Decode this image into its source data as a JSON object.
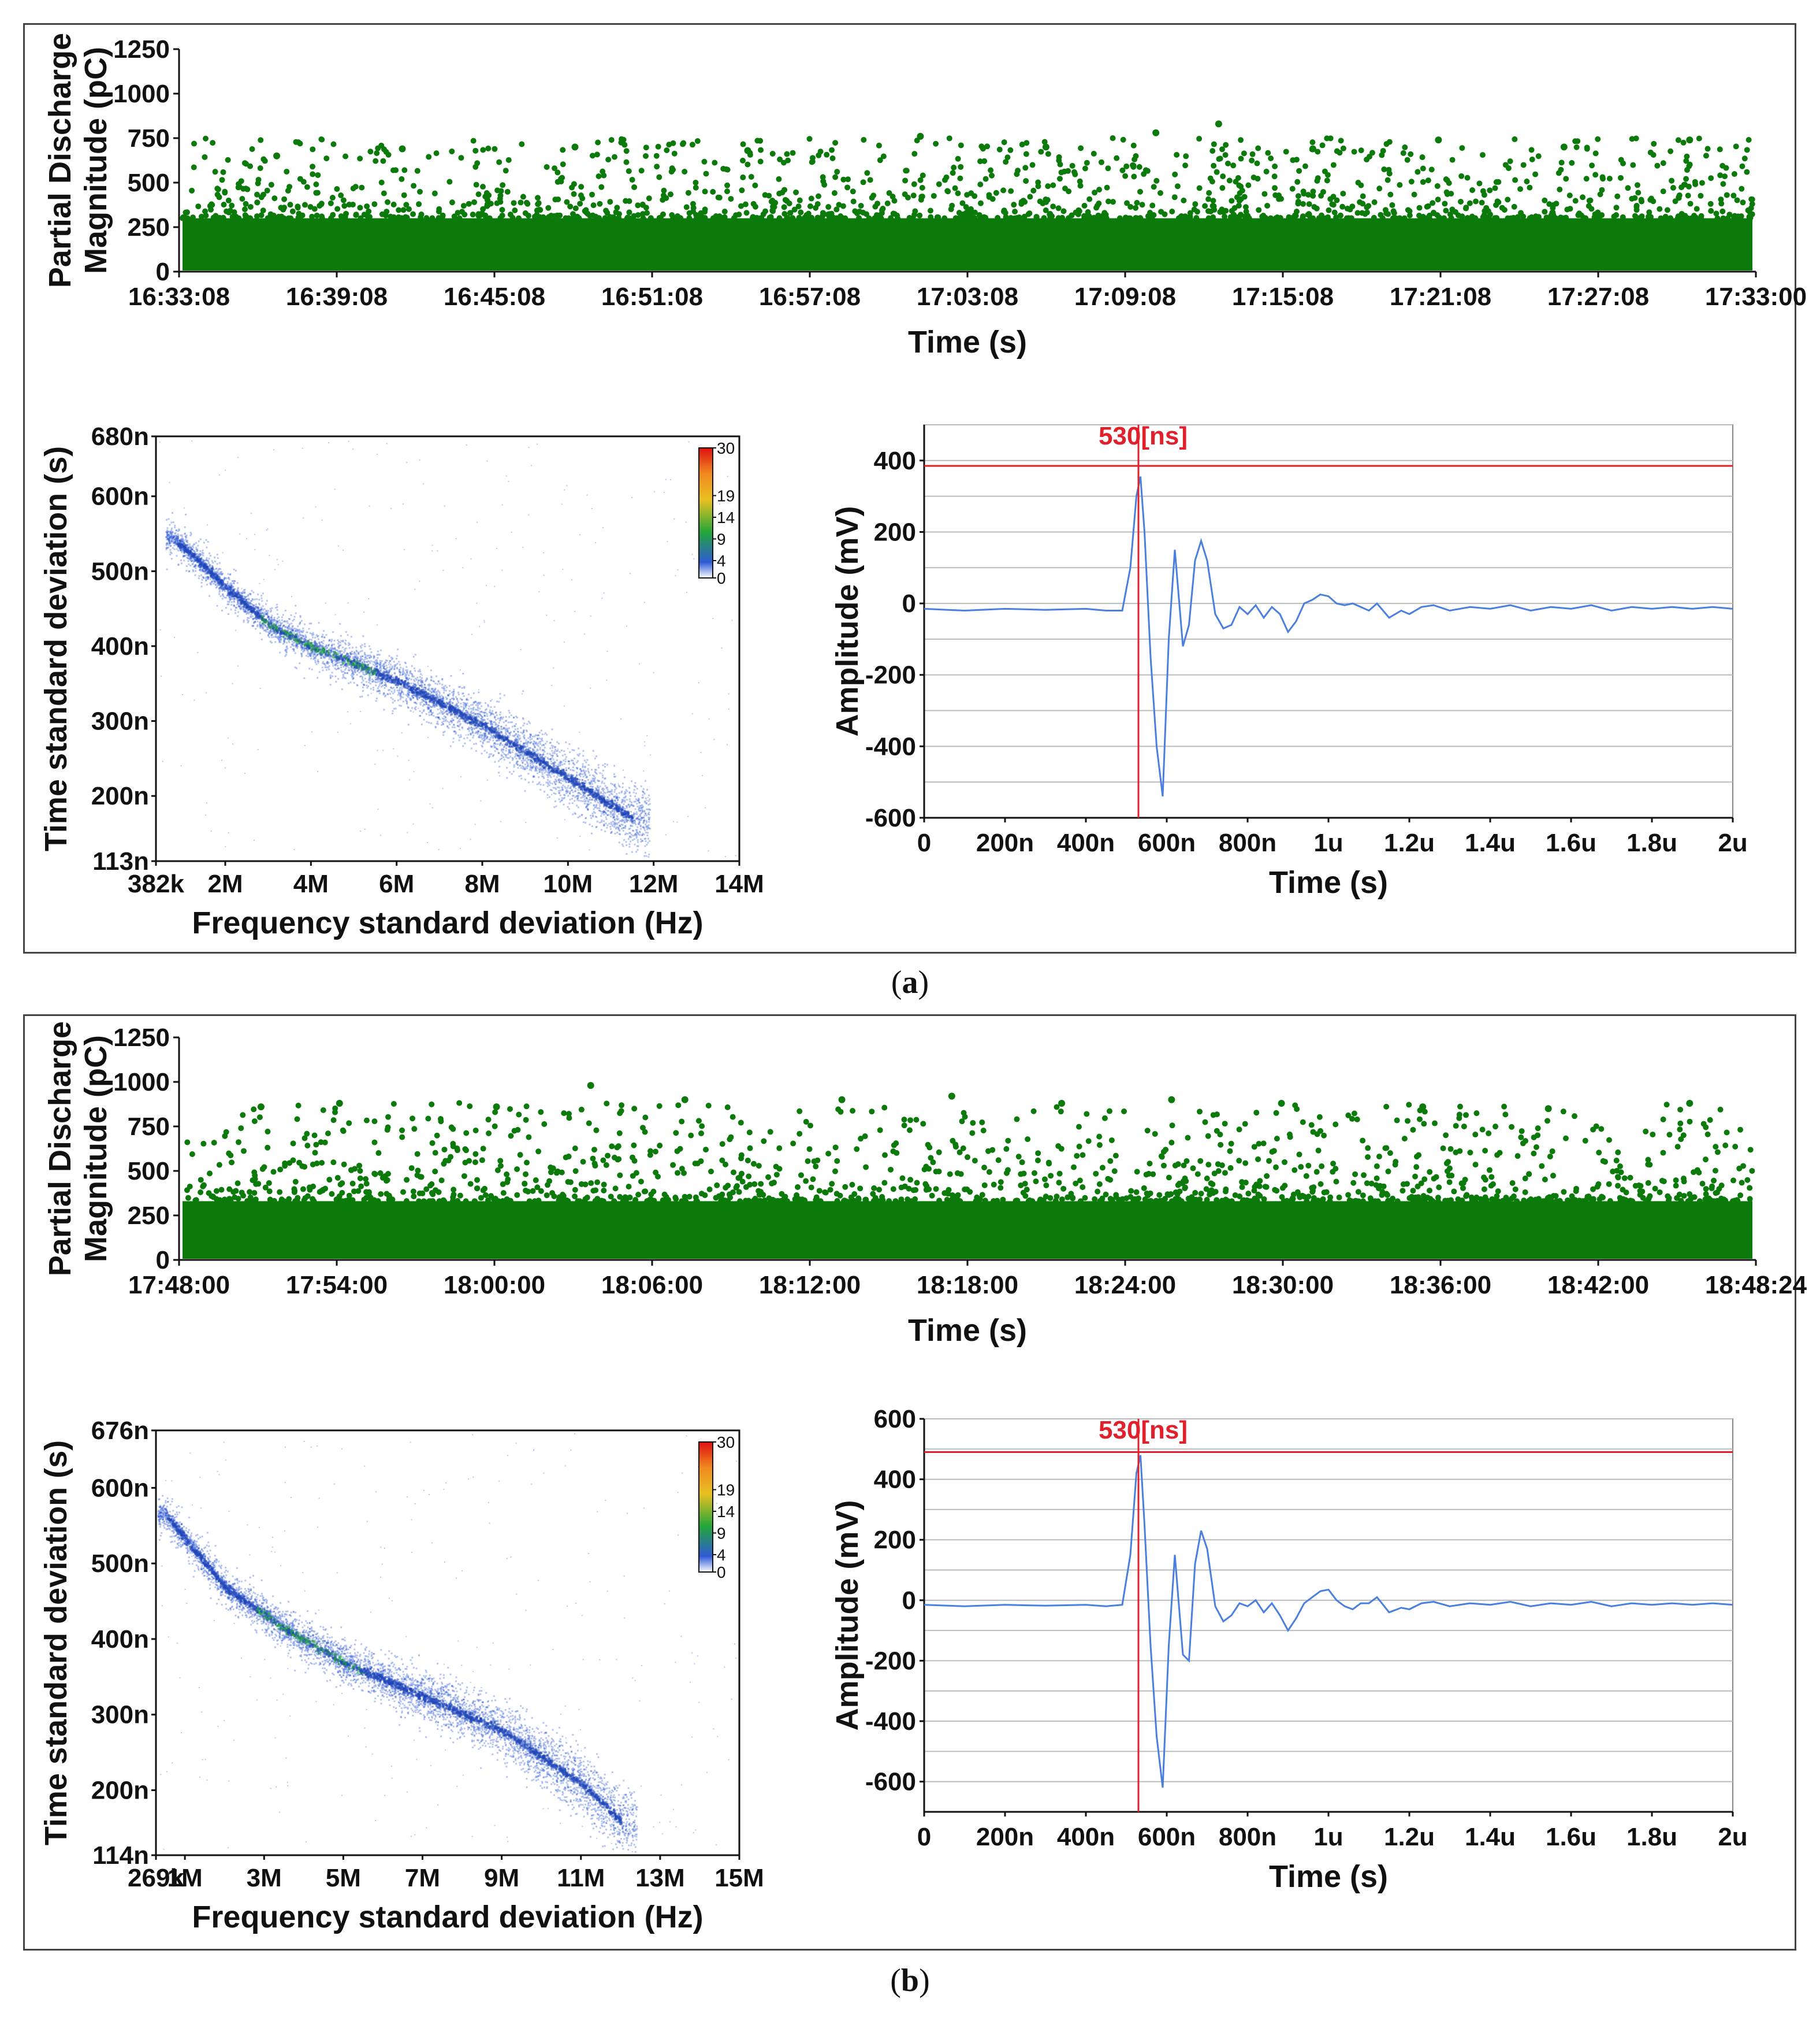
{
  "captions": {
    "a": "a",
    "b": "b"
  },
  "colors": {
    "scatter": "#0b7a0b",
    "marker": "#e0202a",
    "waveform": "#4a7fe0",
    "density_low": "#2f5ad6",
    "density_mid": "#22a63a"
  },
  "chart_data": [
    {
      "id": "a-pd-time",
      "type": "scatter",
      "ylabel_lines": [
        "Partial Discharge",
        "Magnitude (pC)"
      ],
      "xlabel": "Time (s)",
      "xticks": [
        "16:33:08",
        "16:39:08",
        "16:45:08",
        "16:51:08",
        "16:57:08",
        "17:03:08",
        "17:09:08",
        "17:15:08",
        "17:21:08",
        "17:27:08",
        "17:33:00"
      ],
      "yticks": [
        "0",
        "250",
        "500",
        "750",
        "1000",
        "1250"
      ],
      "ylim": [
        0,
        1250
      ],
      "band_max": 300,
      "points_max": 830,
      "peaks": [
        [
          0.06,
          650
        ],
        [
          0.14,
          690
        ],
        [
          0.25,
          700
        ],
        [
          0.36,
          680
        ],
        [
          0.47,
          760
        ],
        [
          0.55,
          700
        ],
        [
          0.62,
          780
        ],
        [
          0.66,
          830
        ],
        [
          0.72,
          690
        ],
        [
          0.8,
          740
        ],
        [
          0.88,
          700
        ],
        [
          0.96,
          740
        ]
      ]
    },
    {
      "id": "a-tf-map",
      "type": "heatmap",
      "xlabel": "Frequency standard deviation (Hz)",
      "ylabel": "Time standard deviation (s)",
      "xticks": [
        "382k",
        "2M",
        "4M",
        "6M",
        "8M",
        "10M",
        "12M",
        "14M"
      ],
      "yticks": [
        "113n",
        "200n",
        "300n",
        "400n",
        "500n",
        "600n",
        "680n"
      ],
      "xlim": [
        0.382,
        14
      ],
      "ylim": [
        113,
        680
      ],
      "ytick_values": [
        113,
        200,
        300,
        400,
        500,
        600,
        680
      ],
      "xtick_values": [
        0.382,
        2,
        4,
        6,
        8,
        10,
        12,
        14
      ],
      "colorbar_ticks": [
        "30",
        "19",
        "14",
        "9",
        "4",
        "0"
      ],
      "colorbar_values": [
        30,
        19,
        14,
        9,
        4,
        0
      ],
      "trend": [
        [
          0.8,
          545
        ],
        [
          2,
          480
        ],
        [
          3,
          430
        ],
        [
          4,
          400
        ],
        [
          6,
          355
        ],
        [
          8,
          295
        ],
        [
          10,
          225
        ],
        [
          11.5,
          170
        ]
      ]
    },
    {
      "id": "a-waveform",
      "type": "line",
      "xlabel": "Time (s)",
      "ylabel": "Amplitude (mV)",
      "xticks": [
        "0",
        "200n",
        "400n",
        "600n",
        "800n",
        "1u",
        "1.2u",
        "1.4u",
        "1.6u",
        "1.8u",
        "2u"
      ],
      "xtick_values": [
        0,
        200,
        400,
        600,
        800,
        1000,
        1200,
        1400,
        1600,
        1800,
        2000
      ],
      "yticks": [
        "-600",
        "-400",
        "-200",
        "0",
        "200",
        "400"
      ],
      "ytick_values": [
        -600,
        -400,
        -200,
        0,
        200,
        400
      ],
      "xlim": [
        0,
        2000
      ],
      "ylim": [
        -600,
        500
      ],
      "marker_label": "530[ns]",
      "marker_x": 530,
      "marker_y": 385,
      "series": [
        {
          "name": "signal",
          "x": [
            0,
            100,
            200,
            300,
            400,
            450,
            490,
            510,
            525,
            535,
            545,
            560,
            575,
            590,
            605,
            620,
            640,
            655,
            670,
            685,
            700,
            720,
            740,
            760,
            780,
            800,
            820,
            840,
            860,
            880,
            900,
            920,
            940,
            960,
            980,
            1000,
            1020,
            1040,
            1060,
            1080,
            1100,
            1120,
            1150,
            1180,
            1200,
            1230,
            1260,
            1300,
            1350,
            1400,
            1450,
            1500,
            1550,
            1600,
            1650,
            1700,
            1750,
            1800,
            1850,
            1900,
            1950,
            2000
          ],
          "y": [
            -15,
            -20,
            -15,
            -18,
            -15,
            -20,
            -20,
            100,
            300,
            355,
            200,
            -150,
            -400,
            -540,
            -100,
            150,
            -120,
            -60,
            120,
            175,
            120,
            -30,
            -70,
            -60,
            -10,
            -30,
            -5,
            -40,
            -10,
            -30,
            -80,
            -50,
            0,
            10,
            25,
            20,
            0,
            -5,
            0,
            -10,
            -20,
            0,
            -40,
            -20,
            -30,
            -10,
            -5,
            -20,
            -10,
            -15,
            -5,
            -20,
            -10,
            -15,
            -5,
            -20,
            -10,
            -15,
            -10,
            -15,
            -10,
            -15
          ]
        }
      ]
    },
    {
      "id": "b-pd-time",
      "type": "scatter",
      "ylabel_lines": [
        "Partial Discharge",
        "Magnitude (pC)"
      ],
      "xlabel": "Time (s)",
      "xticks": [
        "17:48:00",
        "17:54:00",
        "18:00:00",
        "18:06:00",
        "18:12:00",
        "18:18:00",
        "18:24:00",
        "18:30:00",
        "18:36:00",
        "18:42:00",
        "18:48:24"
      ],
      "yticks": [
        "0",
        "250",
        "500",
        "750",
        "1000",
        "1250"
      ],
      "ylim": [
        0,
        1250
      ],
      "band_max": 330,
      "points_max": 980,
      "peaks": [
        [
          0.05,
          860
        ],
        [
          0.1,
          880
        ],
        [
          0.2,
          860
        ],
        [
          0.26,
          980
        ],
        [
          0.32,
          900
        ],
        [
          0.42,
          900
        ],
        [
          0.49,
          920
        ],
        [
          0.56,
          880
        ],
        [
          0.63,
          900
        ],
        [
          0.7,
          880
        ],
        [
          0.79,
          860
        ],
        [
          0.87,
          850
        ],
        [
          0.96,
          880
        ]
      ]
    },
    {
      "id": "b-tf-map",
      "type": "heatmap",
      "xlabel": "Frequency standard deviation (Hz)",
      "ylabel": "Time standard deviation (s)",
      "xticks": [
        "269k",
        "1M",
        "3M",
        "5M",
        "7M",
        "9M",
        "11M",
        "13M",
        "15M"
      ],
      "xtick_values": [
        0.269,
        1,
        3,
        5,
        7,
        9,
        11,
        13,
        15
      ],
      "yticks": [
        "114n",
        "200n",
        "300n",
        "400n",
        "500n",
        "600n",
        "676n"
      ],
      "ytick_values": [
        114,
        200,
        300,
        400,
        500,
        600,
        676
      ],
      "xlim": [
        0.269,
        15
      ],
      "ylim": [
        114,
        676
      ],
      "colorbar_ticks": [
        "30",
        "19",
        "14",
        "9",
        "4",
        "0"
      ],
      "colorbar_values": [
        30,
        19,
        14,
        9,
        4,
        0
      ],
      "trend": [
        [
          0.5,
          565
        ],
        [
          2,
          470
        ],
        [
          3.5,
          415
        ],
        [
          5,
          370
        ],
        [
          7,
          325
        ],
        [
          9,
          280
        ],
        [
          11,
          210
        ],
        [
          12,
          160
        ]
      ]
    },
    {
      "id": "b-waveform",
      "type": "line",
      "xlabel": "Time (s)",
      "ylabel": "Amplitude (mV)",
      "xticks": [
        "0",
        "200n",
        "400n",
        "600n",
        "800n",
        "1u",
        "1.2u",
        "1.4u",
        "1.6u",
        "1.8u",
        "2u"
      ],
      "xtick_values": [
        0,
        200,
        400,
        600,
        800,
        1000,
        1200,
        1400,
        1600,
        1800,
        2000
      ],
      "yticks": [
        "-600",
        "-400",
        "-200",
        "0",
        "200",
        "400",
        "600"
      ],
      "ytick_values": [
        -600,
        -400,
        -200,
        0,
        200,
        400,
        600
      ],
      "xlim": [
        0,
        2000
      ],
      "ylim": [
        -700,
        600
      ],
      "marker_label": "530[ns]",
      "marker_x": 530,
      "marker_y": 490,
      "series": [
        {
          "name": "signal",
          "x": [
            0,
            100,
            200,
            300,
            400,
            450,
            490,
            510,
            525,
            535,
            545,
            560,
            575,
            590,
            605,
            620,
            640,
            655,
            670,
            685,
            700,
            720,
            740,
            760,
            780,
            800,
            820,
            840,
            860,
            880,
            900,
            920,
            940,
            960,
            980,
            1000,
            1020,
            1040,
            1060,
            1080,
            1100,
            1120,
            1150,
            1180,
            1200,
            1230,
            1260,
            1300,
            1350,
            1400,
            1450,
            1500,
            1550,
            1600,
            1650,
            1700,
            1750,
            1800,
            1850,
            1900,
            1950,
            2000
          ],
          "y": [
            -15,
            -20,
            -15,
            -18,
            -15,
            -20,
            -15,
            150,
            420,
            480,
            250,
            -150,
            -450,
            -620,
            -150,
            150,
            -180,
            -200,
            120,
            230,
            170,
            -20,
            -70,
            -50,
            -10,
            -20,
            0,
            -40,
            -10,
            -50,
            -100,
            -60,
            -10,
            10,
            30,
            35,
            0,
            -20,
            -30,
            -10,
            -10,
            10,
            -40,
            -25,
            -30,
            -10,
            -5,
            -20,
            -10,
            -15,
            -5,
            -20,
            -10,
            -15,
            -5,
            -20,
            -10,
            -15,
            -10,
            -15,
            -10,
            -15
          ]
        }
      ]
    }
  ]
}
